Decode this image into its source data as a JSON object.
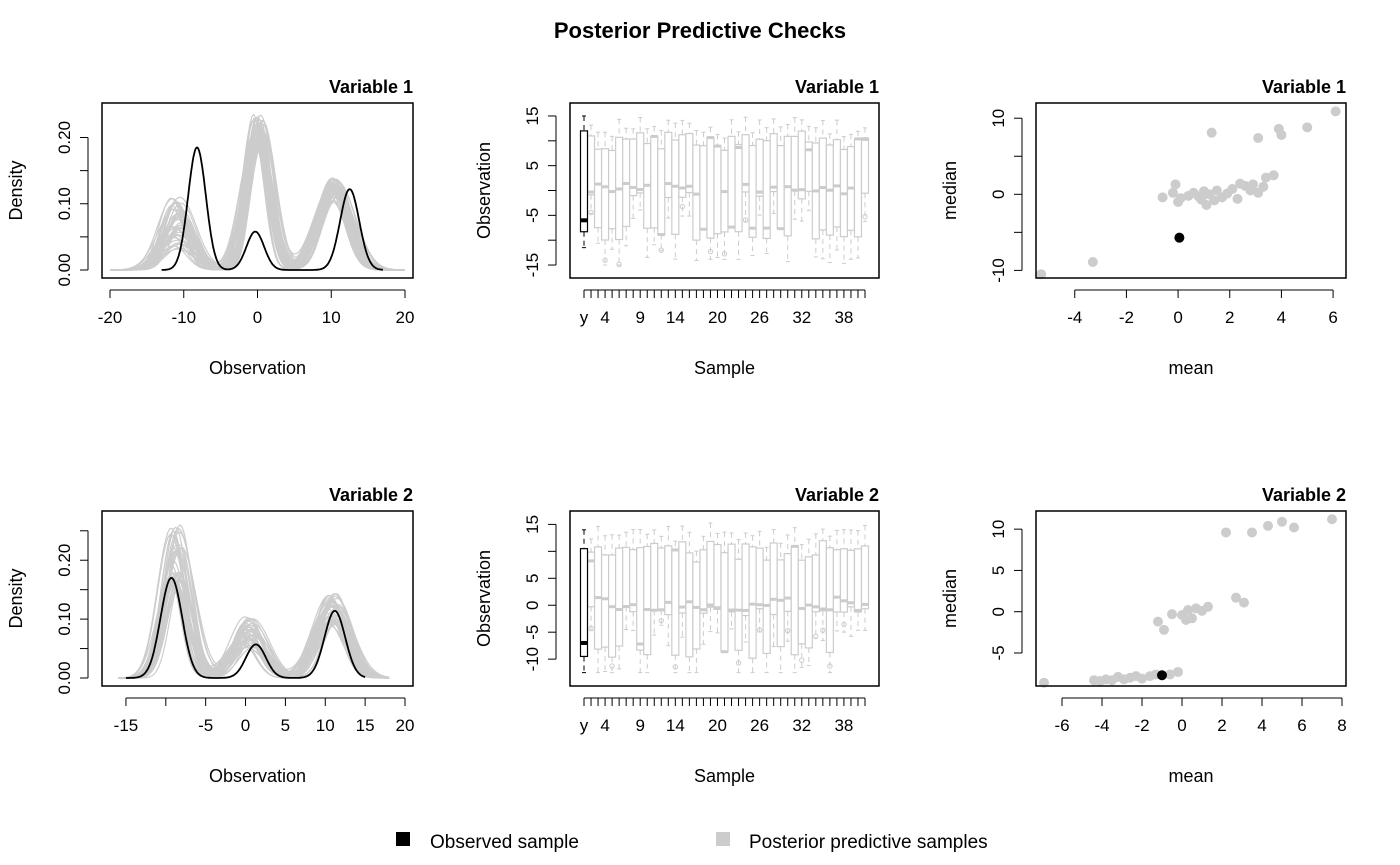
{
  "title": "Posterior Predictive Checks",
  "colors": {
    "observed": "#000000",
    "posterior": "#cccccc"
  },
  "legend": [
    {
      "label": "Observed sample",
      "color": "#000000"
    },
    {
      "label": "Posterior predictive samples",
      "color": "#cccccc"
    }
  ],
  "chart_data": [
    {
      "type": "line",
      "panel": "density-1",
      "title": "Variable 1",
      "xlabel": "Observation",
      "ylabel": "Density",
      "xlim": [
        -20,
        20
      ],
      "ylim": [
        0,
        0.24
      ],
      "xticks": [
        -20,
        -10,
        0,
        10,
        20
      ],
      "yticks": [
        0,
        0.1,
        0.2
      ],
      "ytick_labels": [
        "0.00",
        "0.10",
        "0.20"
      ],
      "yticks_minor": [
        0.05,
        0.15
      ],
      "observed": {
        "x_range": [
          -13,
          17
        ],
        "components": [
          {
            "mean": -8.2,
            "sd": 1.2,
            "peak": 0.185
          },
          {
            "mean": -0.3,
            "sd": 1.2,
            "peak": 0.058
          },
          {
            "mean": 12.5,
            "sd": 1.3,
            "peak": 0.122
          }
        ]
      },
      "posterior": {
        "count": 40,
        "x_range": [
          -20,
          20
        ],
        "components": [
          {
            "mean": -11,
            "sd": 2.0,
            "peak_range": [
              0.03,
              0.11
            ]
          },
          {
            "mean": 0,
            "sd": 1.6,
            "peak_range": [
              0.19,
              0.235
            ]
          },
          {
            "mean": 10.5,
            "sd": 2.1,
            "peak_range": [
              0.1,
              0.14
            ]
          }
        ]
      }
    },
    {
      "type": "box",
      "panel": "box-1",
      "title": "Variable 1",
      "xlabel": "Sample",
      "ylabel": "Observation",
      "ylim": [
        -16,
        16
      ],
      "yticks": [
        -15,
        -5,
        5,
        15
      ],
      "yticks_minor": [
        -10,
        0,
        10
      ],
      "xtick_labels": [
        "y",
        "4",
        "9",
        "14",
        "20",
        "26",
        "32",
        "38"
      ],
      "observed": {
        "min": -11.5,
        "q1": -8.3,
        "median": -6.0,
        "q3": 12.0,
        "max": 15.0
      },
      "posterior_count": 40
    },
    {
      "type": "scatter",
      "panel": "scatter-1",
      "title": "Variable 1",
      "xlabel": "mean",
      "ylabel": "median",
      "xlim": [
        -5.5,
        6.5
      ],
      "ylim": [
        -11,
        12
      ],
      "xticks": [
        -4,
        -2,
        0,
        2,
        4,
        6
      ],
      "yticks": [
        -10,
        0,
        10
      ],
      "yticks_minor": [
        -5,
        5
      ],
      "observed": [
        {
          "x": 0.05,
          "y": -5.7
        }
      ],
      "posterior": [
        {
          "x": -5.3,
          "y": -10.5
        },
        {
          "x": -3.3,
          "y": -8.9
        },
        {
          "x": -0.6,
          "y": -0.4
        },
        {
          "x": -0.2,
          "y": 0.2
        },
        {
          "x": -0.1,
          "y": 1.3
        },
        {
          "x": 0.1,
          "y": -0.5
        },
        {
          "x": 0.4,
          "y": -0.2
        },
        {
          "x": 0.6,
          "y": 0.2
        },
        {
          "x": 0.8,
          "y": -0.3
        },
        {
          "x": 1.0,
          "y": 0.4
        },
        {
          "x": 1.1,
          "y": -1.4
        },
        {
          "x": 1.2,
          "y": 0.0
        },
        {
          "x": 1.4,
          "y": -0.8
        },
        {
          "x": 1.5,
          "y": 0.5
        },
        {
          "x": 1.7,
          "y": -0.4
        },
        {
          "x": 1.9,
          "y": 0.1
        },
        {
          "x": 2.1,
          "y": 0.7
        },
        {
          "x": 2.3,
          "y": -0.6
        },
        {
          "x": 2.4,
          "y": 1.4
        },
        {
          "x": 2.6,
          "y": 1.1
        },
        {
          "x": 2.8,
          "y": 0.5
        },
        {
          "x": 2.9,
          "y": 1.3
        },
        {
          "x": 3.1,
          "y": 0.2
        },
        {
          "x": 3.3,
          "y": 1.0
        },
        {
          "x": 3.4,
          "y": 2.2
        },
        {
          "x": 3.7,
          "y": 2.5
        },
        {
          "x": 3.9,
          "y": 8.6
        },
        {
          "x": 4.0,
          "y": 7.8
        },
        {
          "x": 1.3,
          "y": 8.1
        },
        {
          "x": 3.1,
          "y": 7.4
        },
        {
          "x": 5.0,
          "y": 8.8
        },
        {
          "x": 6.1,
          "y": 10.9
        },
        {
          "x": 0.0,
          "y": -1.0
        },
        {
          "x": 0.9,
          "y": -0.7
        }
      ]
    },
    {
      "type": "line",
      "panel": "density-2",
      "title": "Variable 2",
      "xlabel": "Observation",
      "ylabel": "Density",
      "xlim": [
        -17,
        20
      ],
      "ylim": [
        0,
        0.27
      ],
      "xticks": [
        -15,
        -5,
        0,
        5,
        10,
        15,
        20
      ],
      "xticks_minor": [
        -10
      ],
      "yticks": [
        0,
        0.1,
        0.2
      ],
      "ytick_labels": [
        "0.00",
        "0.10",
        "0.20"
      ],
      "yticks_minor": [
        0.05,
        0.15,
        0.25
      ],
      "observed": {
        "x_range": [
          -15,
          15
        ],
        "components": [
          {
            "mean": -9.3,
            "sd": 1.35,
            "peak": 0.17
          },
          {
            "mean": 1.3,
            "sd": 1.25,
            "peak": 0.057
          },
          {
            "mean": 11.2,
            "sd": 1.3,
            "peak": 0.114
          }
        ]
      },
      "posterior": {
        "count": 40,
        "x_range": [
          -16,
          18
        ],
        "components": [
          {
            "mean": -8.7,
            "sd": 1.6,
            "peak_range": [
              0.16,
              0.265
            ]
          },
          {
            "mean": 0.3,
            "sd": 1.9,
            "peak_range": [
              0.05,
              0.105
            ]
          },
          {
            "mean": 11.0,
            "sd": 1.9,
            "peak_range": [
              0.09,
              0.145
            ]
          }
        ]
      }
    },
    {
      "type": "box",
      "panel": "box-2",
      "title": "Variable 2",
      "xlabel": "Sample",
      "ylabel": "Observation",
      "ylim": [
        -13.5,
        16
      ],
      "yticks": [
        -10,
        -5,
        0,
        5,
        15
      ],
      "yticks_minor": [
        10
      ],
      "xtick_labels": [
        "y",
        "4",
        "9",
        "14",
        "20",
        "26",
        "32",
        "38"
      ],
      "observed": {
        "min": -12.5,
        "q1": -9.5,
        "median": -7.0,
        "q3": 10.5,
        "max": 14.0
      },
      "posterior_count": 40
    },
    {
      "type": "scatter",
      "panel": "scatter-2",
      "title": "Variable 2",
      "xlabel": "mean",
      "ylabel": "median",
      "xlim": [
        -7.3,
        8.2
      ],
      "ylim": [
        -9,
        12.2
      ],
      "xticks": [
        -6,
        -4,
        -2,
        0,
        2,
        4,
        6,
        8
      ],
      "yticks": [
        -5,
        0,
        5,
        10
      ],
      "observed": [
        {
          "x": -1.0,
          "y": -7.7
        }
      ],
      "posterior": [
        {
          "x": -6.9,
          "y": -8.6
        },
        {
          "x": -4.4,
          "y": -8.3
        },
        {
          "x": -4.1,
          "y": -8.4
        },
        {
          "x": -3.8,
          "y": -8.2
        },
        {
          "x": -3.5,
          "y": -8.3
        },
        {
          "x": -3.2,
          "y": -7.9
        },
        {
          "x": -2.9,
          "y": -8.2
        },
        {
          "x": -2.6,
          "y": -8.0
        },
        {
          "x": -2.3,
          "y": -7.8
        },
        {
          "x": -2.0,
          "y": -8.1
        },
        {
          "x": -1.6,
          "y": -7.8
        },
        {
          "x": -1.3,
          "y": -7.6
        },
        {
          "x": -0.6,
          "y": -7.6
        },
        {
          "x": -0.2,
          "y": -7.3
        },
        {
          "x": -1.2,
          "y": -1.2
        },
        {
          "x": -0.9,
          "y": -2.2
        },
        {
          "x": -0.5,
          "y": -0.3
        },
        {
          "x": 0.0,
          "y": -0.4
        },
        {
          "x": 0.3,
          "y": 0.2
        },
        {
          "x": 0.5,
          "y": -0.8
        },
        {
          "x": 0.7,
          "y": 0.4
        },
        {
          "x": 1.0,
          "y": 0.1
        },
        {
          "x": 1.3,
          "y": 0.6
        },
        {
          "x": 0.2,
          "y": -1.0
        },
        {
          "x": 2.2,
          "y": 9.6
        },
        {
          "x": 2.7,
          "y": 1.7
        },
        {
          "x": 3.1,
          "y": 1.1
        },
        {
          "x": 3.5,
          "y": 9.6
        },
        {
          "x": 4.3,
          "y": 10.4
        },
        {
          "x": 5.0,
          "y": 10.9
        },
        {
          "x": 5.6,
          "y": 10.2
        },
        {
          "x": 7.5,
          "y": 11.2
        }
      ]
    }
  ]
}
